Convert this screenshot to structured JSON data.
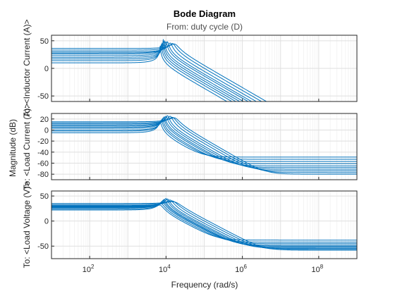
{
  "chart_data": {
    "type": "line",
    "title": "Bode Diagram",
    "subtitle": "From: duty cycle (D)",
    "xlabel": "Frequency (rad/s)",
    "ylabel": "Magnitude (dB)",
    "xscale": "log",
    "xlim": [
      10,
      1000000000
    ],
    "x_ticks": [
      100,
      10000,
      1000000,
      100000000
    ],
    "x_tick_labels": [
      {
        "base": "10",
        "exp": "2"
      },
      {
        "base": "10",
        "exp": "4"
      },
      {
        "base": "10",
        "exp": "6"
      },
      {
        "base": "10",
        "exp": "8"
      }
    ],
    "grid": true,
    "colors": {
      "series": "#0072bd",
      "grid": "#dfdfdf",
      "axis": "#262626"
    },
    "curve_count": 10,
    "panels": [
      {
        "name": "inductor-current",
        "ylabel": "To: <Inductor Current (A)>",
        "ylim": [
          -60,
          60
        ],
        "yticks": [
          -50,
          0,
          50
        ],
        "series_family": {
          "rolloff": "-40 dB/decade",
          "low_freq_gain_db": [
            10,
            14,
            17,
            20,
            23,
            26,
            28,
            30,
            33,
            36
          ],
          "resonance_peak_db": [
            42,
            47,
            50,
            53,
            51,
            49,
            48,
            46,
            45,
            44
          ],
          "resonance_freq_rad_s": [
            7000,
            7500,
            8000,
            8500,
            9000,
            10000,
            11000,
            13000,
            15000,
            17000
          ],
          "value_at_1e9_db": [
            -60,
            -60,
            -60,
            -60,
            -60,
            -60,
            -60,
            -60,
            -60,
            -60
          ]
        }
      },
      {
        "name": "load-current",
        "ylabel": "To: <Load Current (A)>",
        "ylim": [
          -90,
          30
        ],
        "yticks": [
          -80,
          -60,
          -40,
          -20,
          0,
          20
        ],
        "series_family": {
          "low_freq_gain_db": [
            -5,
            -2,
            0,
            3,
            5,
            7,
            9,
            11,
            13,
            15
          ],
          "resonance_peak_db": [
            15,
            18,
            20,
            22,
            24,
            25,
            26,
            25,
            23,
            22
          ],
          "resonance_freq_rad_s": [
            7000,
            7500,
            8000,
            8500,
            9000,
            10000,
            11000,
            13000,
            15000,
            17000
          ],
          "high_freq_floor_db": [
            -49,
            -53,
            -57,
            -61,
            -65,
            -68,
            -71,
            -74,
            -77,
            -80
          ]
        }
      },
      {
        "name": "load-voltage",
        "ylabel": "To: <Load Voltage (V)>",
        "ylim": [
          -75,
          60
        ],
        "yticks": [
          -50,
          0,
          50
        ],
        "series_family": {
          "low_freq_gain_db": [
            22,
            24,
            26,
            27,
            28,
            29,
            30,
            31,
            33,
            35
          ],
          "resonance_peak_db": [
            32,
            35,
            38,
            41,
            43,
            45,
            44,
            42,
            40,
            38
          ],
          "resonance_freq_rad_s": [
            7000,
            7500,
            8000,
            8500,
            9000,
            10000,
            11000,
            13000,
            15000,
            17000
          ],
          "high_freq_floor_db": [
            -38,
            -42,
            -45,
            -48,
            -50,
            -52,
            -54,
            -55,
            -57,
            -58
          ]
        }
      }
    ]
  }
}
